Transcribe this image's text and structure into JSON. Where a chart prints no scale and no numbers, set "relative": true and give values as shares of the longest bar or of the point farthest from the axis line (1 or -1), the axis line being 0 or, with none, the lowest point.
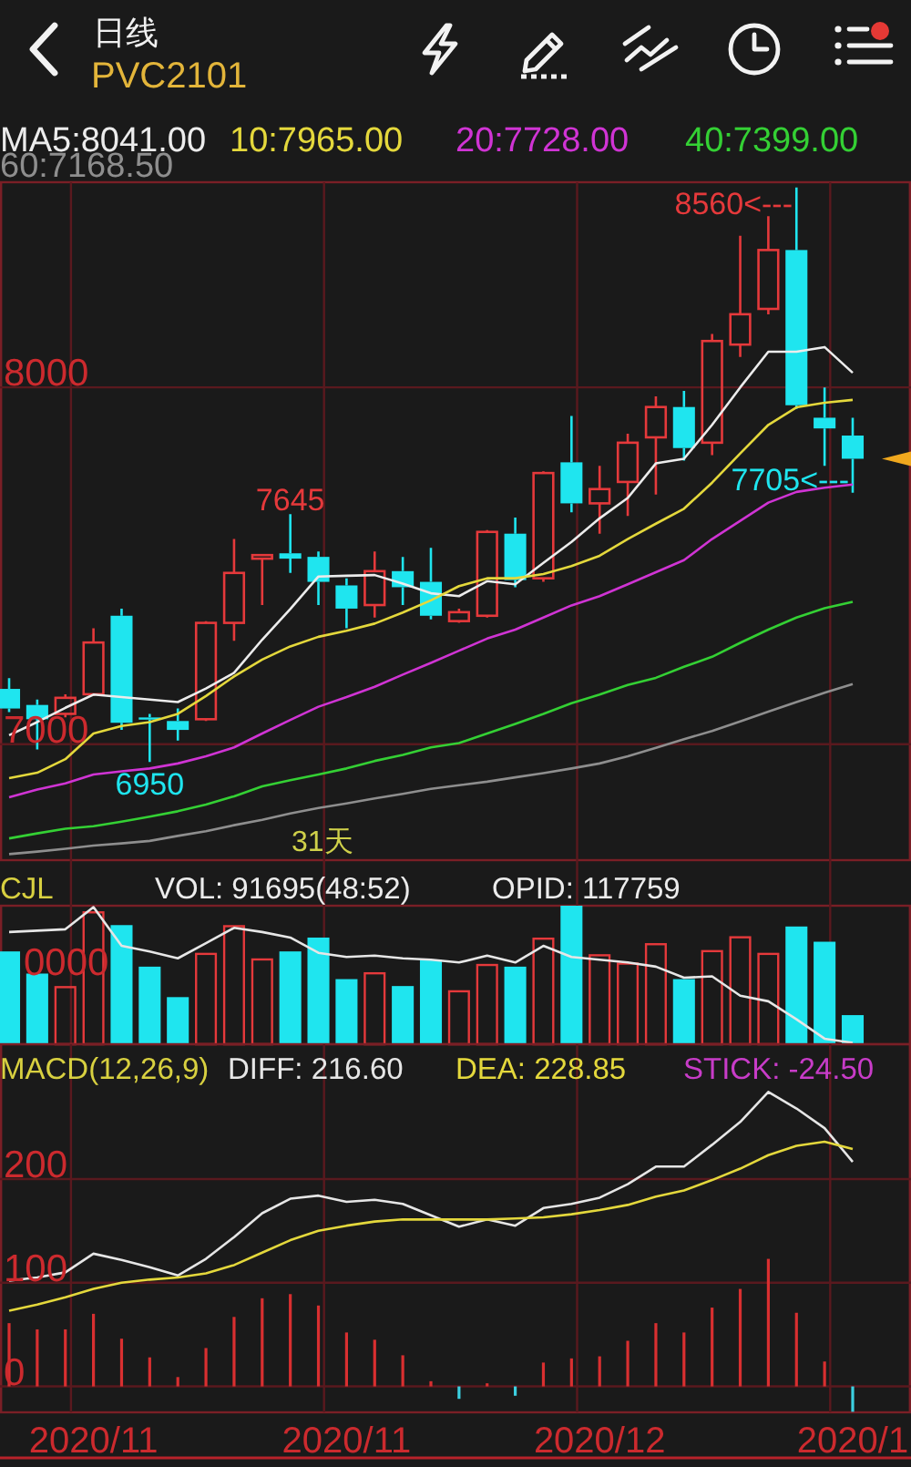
{
  "chart_data": [
    {
      "type": "candlestick",
      "title": "PVC2101",
      "subtitle": "日线",
      "categories": [
        null,
        null,
        null,
        "2020/11",
        null,
        null,
        null,
        null,
        null,
        null,
        null,
        null,
        "2020/11",
        null,
        null,
        null,
        null,
        null,
        null,
        null,
        null,
        "2020/12",
        null,
        null,
        null,
        null,
        null,
        null,
        null,
        null,
        "2020/1"
      ],
      "ohlc": [
        [
          7155,
          7185,
          7090,
          7100
        ],
        [
          7110,
          7125,
          6985,
          7070
        ],
        [
          7085,
          7140,
          7075,
          7130
        ],
        [
          7140,
          7325,
          7135,
          7285
        ],
        [
          7360,
          7380,
          7040,
          7060
        ],
        [
          7075,
          7085,
          6950,
          7070
        ],
        [
          7065,
          7100,
          7010,
          7040
        ],
        [
          7070,
          7345,
          7065,
          7340
        ],
        [
          7340,
          7575,
          7290,
          7480
        ],
        [
          7520,
          7530,
          7390,
          7530
        ],
        [
          7535,
          7645,
          7480,
          7520
        ],
        [
          7525,
          7540,
          7390,
          7455
        ],
        [
          7445,
          7465,
          7325,
          7380
        ],
        [
          7390,
          7540,
          7355,
          7485
        ],
        [
          7485,
          7525,
          7390,
          7440
        ],
        [
          7455,
          7550,
          7350,
          7360
        ],
        [
          7345,
          7380,
          7340,
          7370
        ],
        [
          7360,
          7600,
          7355,
          7595
        ],
        [
          7590,
          7635,
          7440,
          7460
        ],
        [
          7465,
          7765,
          7455,
          7760
        ],
        [
          7790,
          7920,
          7650,
          7675
        ],
        [
          7675,
          7780,
          7590,
          7715
        ],
        [
          7735,
          7870,
          7640,
          7845
        ],
        [
          7860,
          7975,
          7700,
          7945
        ],
        [
          7945,
          7990,
          7795,
          7830
        ],
        [
          7845,
          8150,
          7810,
          8130
        ],
        [
          8120,
          8425,
          8085,
          8205
        ],
        [
          8220,
          8480,
          8205,
          8385
        ],
        [
          8385,
          8560,
          7940,
          7950
        ],
        [
          7915,
          8000,
          7780,
          7885
        ],
        [
          7865,
          7915,
          7705,
          7800
        ]
      ],
      "colors": [
        "#1fe5ef",
        "#1fe5ef",
        "#e5393b",
        "#e5393b",
        "#1fe5ef",
        "#1fe5ef",
        "#1fe5ef",
        "#e5393b",
        "#e5393b",
        "#e5393b",
        "#1fe5ef",
        "#1fe5ef",
        "#1fe5ef",
        "#e5393b",
        "#1fe5ef",
        "#1fe5ef",
        "#e5393b",
        "#e5393b",
        "#1fe5ef",
        "#e5393b",
        "#1fe5ef",
        "#e5393b",
        "#e5393b",
        "#e5393b",
        "#1fe5ef",
        "#e5393b",
        "#e5393b",
        "#e5393b",
        "#1fe5ef",
        "#1fe5ef",
        "#1fe5ef"
      ],
      "series": [
        {
          "type": "line",
          "name": "MA5:8041.00",
          "color": "#ececec",
          "values": [
            7025,
            7062,
            7102,
            7139,
            7132,
            7125,
            7118,
            7156,
            7200,
            7293,
            7379,
            7470,
            7472,
            7474,
            7450,
            7423,
            7415,
            7457,
            7448,
            7508,
            7567,
            7633,
            7690,
            7787,
            7800,
            7895,
            8000,
            8100,
            8100,
            8113,
            8041
          ]
        },
        {
          "type": "line",
          "name": "10:7965.00",
          "color": "#e4d83c",
          "values": [
            6905,
            6920,
            6958,
            7030,
            7051,
            7062,
            7085,
            7135,
            7190,
            7237,
            7274,
            7301,
            7318,
            7338,
            7369,
            7403,
            7443,
            7465,
            7465,
            7477,
            7499,
            7528,
            7575,
            7618,
            7660,
            7733,
            7815,
            7895,
            7944,
            7957,
            7965
          ]
        },
        {
          "type": "line",
          "name": "20:7728.00",
          "color": "#d034d4",
          "values": [
            6851,
            6873,
            6890,
            6915,
            6924,
            6932,
            6946,
            6966,
            6991,
            7030,
            7068,
            7105,
            7132,
            7161,
            7195,
            7228,
            7262,
            7296,
            7321,
            7355,
            7389,
            7415,
            7448,
            7482,
            7516,
            7575,
            7626,
            7677,
            7707,
            7719,
            7728
          ]
        },
        {
          "type": "line",
          "name": "40:7399.00",
          "color": "#34d034",
          "values": [
            6736,
            6750,
            6763,
            6770,
            6783,
            6797,
            6812,
            6831,
            6854,
            6882,
            6899,
            6915,
            6932,
            6953,
            6970,
            6991,
            7003,
            7030,
            7057,
            7085,
            7115,
            7139,
            7166,
            7186,
            7217,
            7245,
            7284,
            7321,
            7355,
            7381,
            7399
          ]
        },
        {
          "type": "line",
          "name": "60:7168.50",
          "color": "#8e8e8e",
          "values": [
            6692,
            6699,
            6707,
            6716,
            6722,
            6729,
            6743,
            6756,
            6773,
            6788,
            6806,
            6821,
            6834,
            6848,
            6861,
            6875,
            6885,
            6895,
            6907,
            6919,
            6932,
            6946,
            6966,
            6990,
            7014,
            7037,
            7064,
            7091,
            7118,
            7144,
            7168.5
          ]
        }
      ],
      "ylim": [
        6675,
        8575
      ],
      "yticks": [
        7000,
        8000
      ],
      "grid": true,
      "tick_labels": "y",
      "legend": "top",
      "annotations": [
        "8560<---",
        {
          "text": "7645",
          "y": 7645
        },
        {
          "text": "6950",
          "y": 6950
        },
        {
          "text": "7705<---",
          "y": 7705
        },
        "31天"
      ]
    },
    {
      "type": "bar",
      "title": "CJL",
      "relative": true,
      "categories": [
        null,
        null,
        null,
        "2020/11",
        null,
        null,
        null,
        null,
        null,
        null,
        null,
        null,
        "2020/11",
        null,
        null,
        null,
        null,
        null,
        null,
        null,
        null,
        "2020/12",
        null,
        null,
        null,
        null,
        null,
        null,
        null,
        null,
        "2020/1"
      ],
      "tick_labels": false,
      "grid": "x",
      "series": [
        {
          "type": "bar",
          "colors": [
            "#1fe5ef",
            "#1fe5ef",
            "#e5393b",
            "#e5393b",
            "#1fe5ef",
            "#1fe5ef",
            "#1fe5ef",
            "#e5393b",
            "#e5393b",
            "#e5393b",
            "#1fe5ef",
            "#1fe5ef",
            "#1fe5ef",
            "#e5393b",
            "#1fe5ef",
            "#1fe5ef",
            "#e5393b",
            "#e5393b",
            "#1fe5ef",
            "#e5393b",
            "#1fe5ef",
            "#e5393b",
            "#e5393b",
            "#e5393b",
            "#1fe5ef",
            "#e5393b",
            "#e5393b",
            "#e5393b",
            "#1fe5ef",
            "#1fe5ef",
            "#1fe5ef"
          ],
          "values": [
            0.67,
            0.51,
            0.42,
            0.96,
            0.86,
            0.56,
            0.34,
            0.66,
            0.86,
            0.62,
            0.67,
            0.77,
            0.47,
            0.52,
            0.42,
            0.61,
            0.39,
            0.58,
            0.56,
            0.77,
            1,
            0.65,
            0.59,
            0.73,
            0.47,
            0.68,
            0.78,
            0.66,
            0.85,
            0.74,
            0.21
          ]
        },
        {
          "type": "line",
          "color": "#e6e6e6",
          "values": [
            0.81,
            0.82,
            0.83,
            0.99,
            0.71,
            0.67,
            0.62,
            0.73,
            0.84,
            0.81,
            0.77,
            0.66,
            0.63,
            0.64,
            0.62,
            0.61,
            0.59,
            0.64,
            0.59,
            0.71,
            0.63,
            0.61,
            0.59,
            0.56,
            0.48,
            0.49,
            0.35,
            0.31,
            0.18,
            0.04,
            0.01
          ]
        }
      ],
      "annotations": [
        "VOL: 91695(48:52)",
        "OPID: 117759",
        "0000"
      ]
    },
    {
      "type": "line",
      "title": "MACD(12,26,9)",
      "categories": [
        null,
        null,
        null,
        "2020/11",
        null,
        null,
        null,
        null,
        null,
        null,
        null,
        null,
        "2020/11",
        null,
        null,
        null,
        null,
        null,
        null,
        null,
        null,
        "2020/12",
        null,
        null,
        null,
        null,
        null,
        null,
        null,
        null,
        "2020/1"
      ],
      "ylim": [
        -25,
        330
      ],
      "yticks": [
        0,
        100,
        200
      ],
      "grid": true,
      "legend": "top",
      "series": [
        {
          "name": "DIFF: 216.60",
          "color": "#e6e6e6",
          "values": [
            102,
            105,
            110,
            128,
            122,
            115,
            107,
            123,
            144,
            167,
            181,
            184,
            178,
            180,
            176,
            165,
            154,
            161,
            155,
            172,
            176,
            182,
            195,
            212,
            212,
            233,
            255,
            284,
            268,
            249,
            216.6
          ]
        },
        {
          "name": "DEA: 228.85",
          "color": "#e4d83c",
          "values": [
            73,
            79,
            86,
            94,
            100,
            103,
            105,
            109,
            117,
            129,
            141,
            150,
            155,
            159,
            161,
            161,
            161,
            161,
            162,
            163,
            166,
            170,
            175,
            183,
            189,
            199,
            210,
            223,
            232,
            236,
            228.85
          ]
        },
        {
          "type": "bar",
          "colors": [
            "#d92f30",
            "#d92f30",
            "#d92f30",
            "#d92f30",
            "#d92f30",
            "#d92f30",
            "#d92f30",
            "#d92f30",
            "#d92f30",
            "#d92f30",
            "#d92f30",
            "#d92f30",
            "#d92f30",
            "#d92f30",
            "#d92f30",
            "#d92f30",
            "#3cd0e0",
            "#d92f30",
            "#3cd0e0",
            "#d92f30",
            "#d92f30",
            "#d92f30",
            "#d92f30",
            "#d92f30",
            "#d92f30",
            "#d92f30",
            "#d92f30",
            "#d92f30",
            "#d92f30",
            "#d92f30",
            "#3cd0e0"
          ],
          "values": [
            61,
            55,
            55,
            70,
            46,
            28,
            9,
            37,
            67,
            85,
            89,
            78,
            52,
            45,
            30,
            5,
            -12,
            3,
            -9,
            23,
            27,
            29,
            44,
            61,
            52,
            76,
            94,
            123,
            71,
            24,
            -24.5
          ]
        }
      ],
      "annotations": [
        "STICK: -24.50"
      ]
    }
  ]
}
